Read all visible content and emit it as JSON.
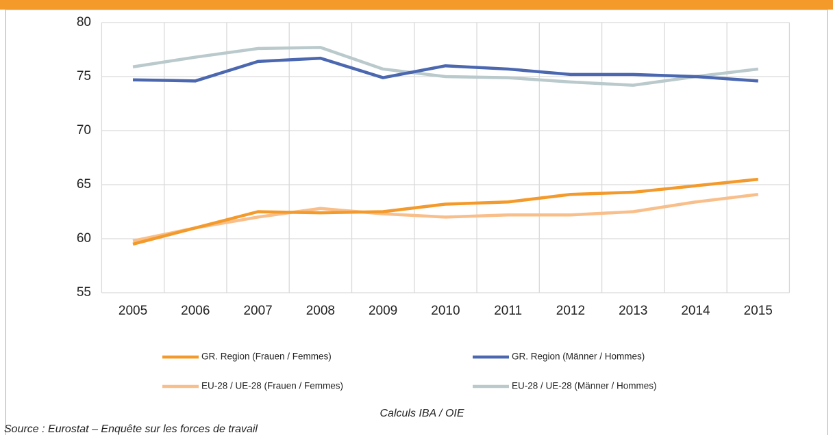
{
  "chart_data": {
    "type": "line",
    "categories": [
      "2005",
      "2006",
      "2007",
      "2008",
      "2009",
      "2010",
      "2011",
      "2012",
      "2013",
      "2014",
      "2015"
    ],
    "series": [
      {
        "name": "GR. Region (Frauen / Femmes)",
        "color": "#f39a2b",
        "values": [
          59.5,
          61.0,
          62.5,
          62.4,
          62.5,
          63.2,
          63.4,
          64.1,
          64.3,
          64.9,
          65.5
        ]
      },
      {
        "name": "GR. Region (Männer / Hommes)",
        "color": "#4a67b0",
        "values": [
          74.7,
          74.6,
          76.4,
          76.7,
          74.9,
          76.0,
          75.7,
          75.2,
          75.2,
          75.0,
          74.6
        ]
      },
      {
        "name": "EU-28 / UE-28 (Frauen / Femmes)",
        "color": "#f9bf8a",
        "values": [
          59.8,
          61.0,
          62.0,
          62.8,
          62.3,
          62.0,
          62.2,
          62.2,
          62.5,
          63.4,
          64.1
        ]
      },
      {
        "name": "EU-28 / UE-28 (Männer / Hommes)",
        "color": "#b9c9cc",
        "values": [
          75.9,
          76.8,
          77.6,
          77.7,
          75.7,
          75.0,
          74.9,
          74.5,
          74.2,
          75.0,
          75.7
        ]
      }
    ],
    "ylim": [
      55,
      80
    ],
    "yticks": [
      55,
      60,
      65,
      70,
      75,
      80
    ],
    "grid": true,
    "annotation": "Calculs IBA / OIE",
    "source": "Source : Eurostat – Enquête sur les forces de travail"
  }
}
